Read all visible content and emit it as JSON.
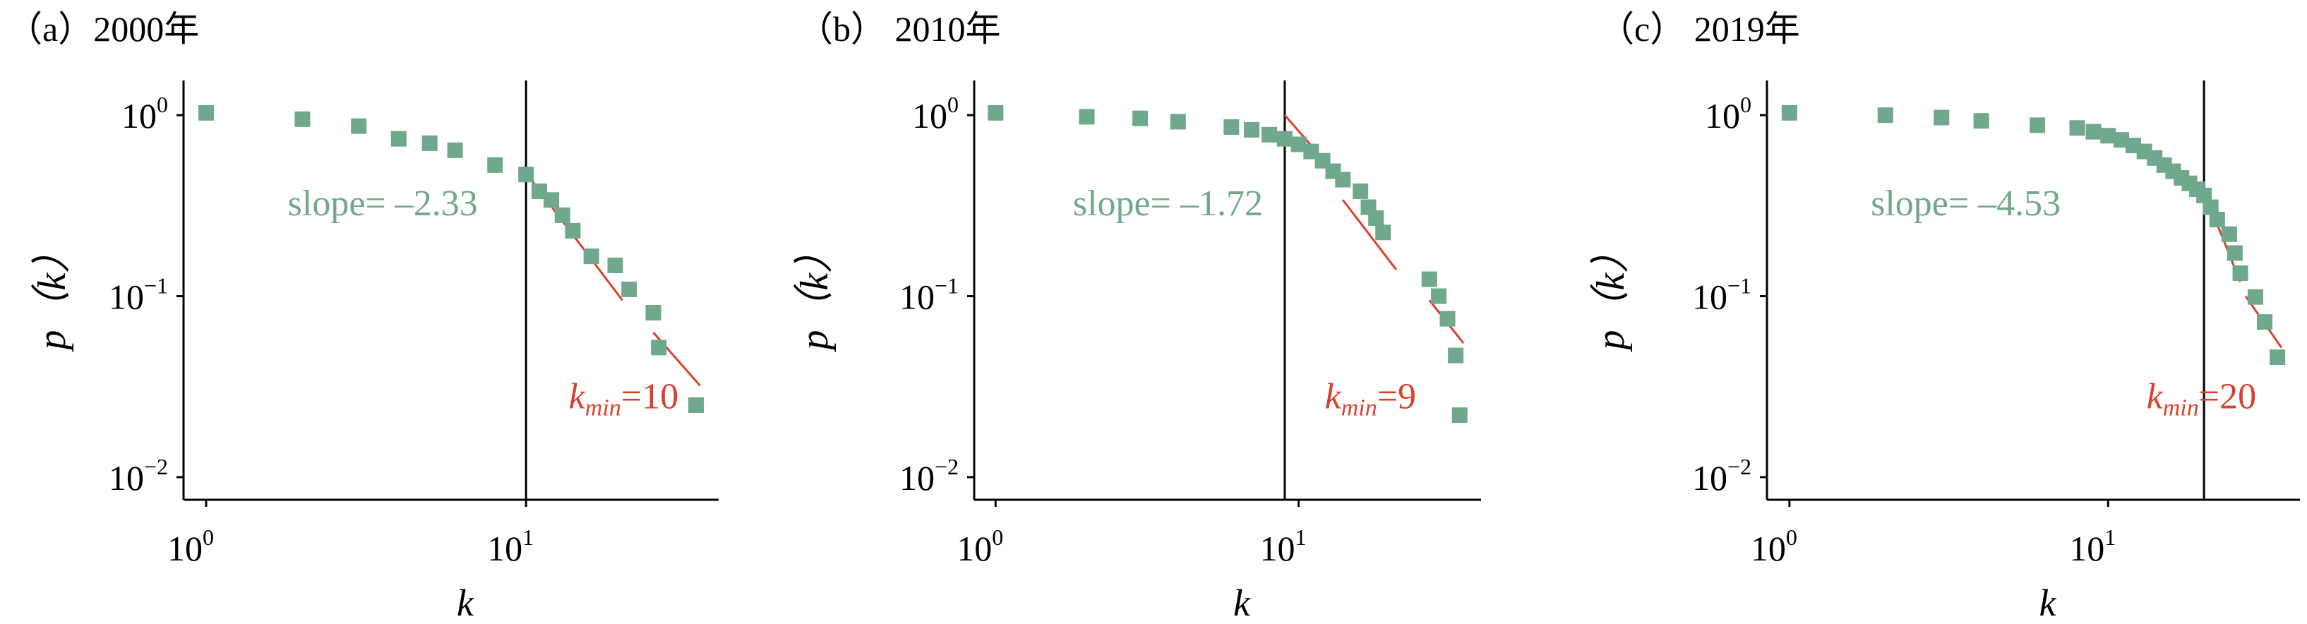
{
  "colors": {
    "marker": "#6fa88a",
    "fit_line": "#d9412f",
    "kmin_line": "#000000",
    "slope_text": "#6fa88a",
    "kmin_text": "#d9412f"
  },
  "chart_data": [
    {
      "type": "scatter",
      "panel": "(a)",
      "title": "（a）2000年",
      "xlabel": "k",
      "ylabel": "p（k）",
      "xscale": "log",
      "yscale": "log",
      "xlim": [
        0.85,
        40
      ],
      "ylim": [
        0.0075,
        1.5
      ],
      "xticks": [
        {
          "value": 1,
          "base": "10",
          "exp": "0"
        },
        {
          "value": 10,
          "base": "10",
          "exp": "1"
        }
      ],
      "yticks": [
        {
          "value": 1,
          "base": "10",
          "exp": "0"
        },
        {
          "value": 0.1,
          "base": "10",
          "exp": "−1"
        },
        {
          "value": 0.01,
          "base": "10",
          "exp": "−2"
        }
      ],
      "grid": false,
      "points": [
        [
          1,
          1.03
        ],
        [
          2,
          0.95
        ],
        [
          3,
          0.87
        ],
        [
          4,
          0.74
        ],
        [
          5,
          0.7
        ],
        [
          6,
          0.64
        ],
        [
          8,
          0.53
        ],
        [
          10,
          0.47
        ],
        [
          11,
          0.38
        ],
        [
          12,
          0.34
        ],
        [
          13,
          0.28
        ],
        [
          14,
          0.23
        ],
        [
          16,
          0.166
        ],
        [
          19,
          0.148
        ],
        [
          21,
          0.109
        ],
        [
          25,
          0.081
        ],
        [
          26,
          0.052
        ],
        [
          34,
          0.025
        ]
      ],
      "fit_segments": [
        [
          [
            10,
            0.48
          ],
          [
            20,
            0.095
          ]
        ],
        [
          [
            25,
            0.063
          ],
          [
            35,
            0.032
          ]
        ]
      ],
      "kmin": 10,
      "slope_label": "slope= –2.33",
      "slope_pos": [
        1.8,
        0.28
      ],
      "kmin_label_main": "k",
      "kmin_label_sub": "min",
      "kmin_label_value": "=10",
      "kmin_label_pos": [
        13.6,
        0.024
      ]
    },
    {
      "type": "scatter",
      "panel": "(b)",
      "title": "（b） 2010年",
      "xlabel": "k",
      "ylabel": "p（k）",
      "xscale": "log",
      "yscale": "log",
      "xlim": [
        0.85,
        40
      ],
      "ylim": [
        0.0075,
        1.5
      ],
      "xticks": [
        {
          "value": 1,
          "base": "10",
          "exp": "0"
        },
        {
          "value": 10,
          "base": "10",
          "exp": "1"
        }
      ],
      "yticks": [
        {
          "value": 1,
          "base": "10",
          "exp": "0"
        },
        {
          "value": 0.1,
          "base": "10",
          "exp": "−1"
        },
        {
          "value": 0.01,
          "base": "10",
          "exp": "−2"
        }
      ],
      "grid": false,
      "points": [
        [
          1,
          1.03
        ],
        [
          2,
          0.98
        ],
        [
          3,
          0.96
        ],
        [
          4,
          0.92
        ],
        [
          6,
          0.86
        ],
        [
          7,
          0.83
        ],
        [
          8,
          0.78
        ],
        [
          9,
          0.74
        ],
        [
          10,
          0.69
        ],
        [
          11,
          0.63
        ],
        [
          12,
          0.56
        ],
        [
          13,
          0.49
        ],
        [
          14,
          0.44
        ],
        [
          16,
          0.38
        ],
        [
          17,
          0.31
        ],
        [
          18,
          0.27
        ],
        [
          19,
          0.225
        ],
        [
          27,
          0.124
        ],
        [
          29,
          0.1
        ],
        [
          31,
          0.075
        ],
        [
          33,
          0.047
        ],
        [
          34,
          0.022
        ]
      ],
      "fit_segments": [
        [
          [
            9,
            1.0
          ],
          [
            13.5,
            0.46
          ]
        ],
        [
          [
            14,
            0.34
          ],
          [
            21,
            0.14
          ]
        ],
        [
          [
            27,
            0.095
          ],
          [
            35,
            0.055
          ]
        ]
      ],
      "kmin": 9,
      "slope_label": "slope= –1.72",
      "slope_pos": [
        1.8,
        0.28
      ],
      "kmin_label_main": "k",
      "kmin_label_sub": "min",
      "kmin_label_value": "=9",
      "kmin_label_pos": [
        12.2,
        0.024
      ]
    },
    {
      "type": "scatter",
      "panel": "(c)",
      "title": "（c） 2019年",
      "xlabel": "k",
      "ylabel": "p（k）",
      "xscale": "log",
      "yscale": "log",
      "xlim": [
        0.85,
        40
      ],
      "ylim": [
        0.0075,
        1.5
      ],
      "xticks": [
        {
          "value": 1,
          "base": "10",
          "exp": "0"
        },
        {
          "value": 10,
          "base": "10",
          "exp": "1"
        }
      ],
      "yticks": [
        {
          "value": 1,
          "base": "10",
          "exp": "0"
        },
        {
          "value": 0.1,
          "base": "10",
          "exp": "−1"
        },
        {
          "value": 0.01,
          "base": "10",
          "exp": "−2"
        }
      ],
      "grid": false,
      "points": [
        [
          1,
          1.03
        ],
        [
          2,
          1.0
        ],
        [
          3,
          0.97
        ],
        [
          4,
          0.93
        ],
        [
          6,
          0.88
        ],
        [
          8,
          0.85
        ],
        [
          9,
          0.81
        ],
        [
          10,
          0.77
        ],
        [
          11,
          0.73
        ],
        [
          12,
          0.68
        ],
        [
          13,
          0.63
        ],
        [
          14,
          0.58
        ],
        [
          15,
          0.53
        ],
        [
          16,
          0.49
        ],
        [
          17,
          0.45
        ],
        [
          18,
          0.42
        ],
        [
          19,
          0.39
        ],
        [
          20,
          0.36
        ],
        [
          21,
          0.31
        ],
        [
          22,
          0.265
        ],
        [
          24,
          0.22
        ],
        [
          25,
          0.173
        ],
        [
          26,
          0.134
        ],
        [
          29,
          0.099
        ],
        [
          31,
          0.072
        ],
        [
          34,
          0.046
        ]
      ],
      "fit_segments": [
        [
          [
            20,
            0.38
          ],
          [
            26,
            0.12
          ]
        ],
        [
          [
            27,
            0.1
          ],
          [
            35,
            0.052
          ]
        ]
      ],
      "kmin": 20,
      "slope_label": "slope= –4.53",
      "slope_pos": [
        1.8,
        0.28
      ],
      "kmin_label_main": "k",
      "kmin_label_sub": "min",
      "kmin_label_value": "=20",
      "kmin_label_pos": [
        13.2,
        0.024
      ]
    }
  ]
}
